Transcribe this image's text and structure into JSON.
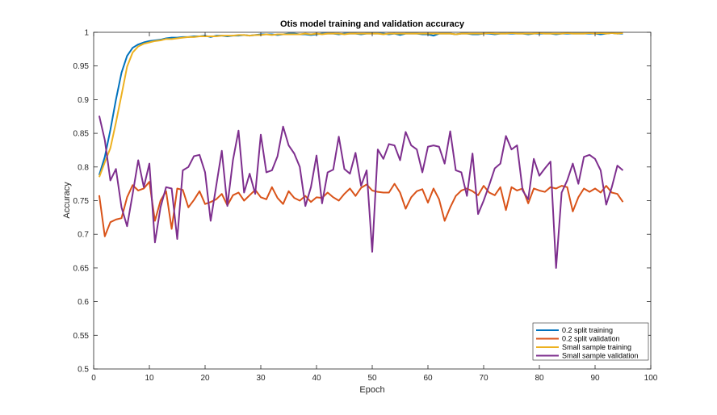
{
  "chart_data": {
    "type": "line",
    "title": "Otis model training and validation accuracy",
    "xlabel": "Epoch",
    "ylabel": "Accuracy",
    "xlim": [
      0,
      100
    ],
    "ylim": [
      0.5,
      1
    ],
    "xticks": [
      0,
      10,
      20,
      30,
      40,
      50,
      60,
      70,
      80,
      90,
      100
    ],
    "yticks": [
      0.5,
      0.55,
      0.6,
      0.65,
      0.7,
      0.75,
      0.8,
      0.85,
      0.9,
      0.95,
      1
    ],
    "ytick_labels": [
      "0.5",
      "0.55",
      "0.6",
      "0.65",
      "0.7",
      "0.75",
      "0.8",
      "0.85",
      "0.9",
      "0.95",
      "1"
    ],
    "grid": false,
    "legend_position": "bottom-right",
    "x": [
      1,
      2,
      3,
      4,
      5,
      6,
      7,
      8,
      9,
      10,
      11,
      12,
      13,
      14,
      15,
      16,
      17,
      18,
      19,
      20,
      21,
      22,
      23,
      24,
      25,
      26,
      27,
      28,
      29,
      30,
      31,
      32,
      33,
      34,
      35,
      36,
      37,
      38,
      39,
      40,
      41,
      42,
      43,
      44,
      45,
      46,
      47,
      48,
      49,
      50,
      51,
      52,
      53,
      54,
      55,
      56,
      57,
      58,
      59,
      60,
      61,
      62,
      63,
      64,
      65,
      66,
      67,
      68,
      69,
      70,
      71,
      72,
      73,
      74,
      75,
      76,
      77,
      78,
      79,
      80,
      81,
      82,
      83,
      84,
      85,
      86,
      87,
      88,
      89,
      90,
      91,
      92,
      93,
      94,
      95
    ],
    "series": [
      {
        "name": "0.2 split training",
        "color": "#0072BD",
        "values": [
          0.788,
          0.815,
          0.855,
          0.9,
          0.94,
          0.965,
          0.977,
          0.982,
          0.985,
          0.987,
          0.988,
          0.989,
          0.991,
          0.992,
          0.992,
          0.993,
          0.993,
          0.994,
          0.994,
          0.995,
          0.993,
          0.995,
          0.995,
          0.994,
          0.995,
          0.995,
          0.996,
          0.995,
          0.996,
          0.997,
          0.997,
          0.997,
          0.996,
          0.997,
          0.998,
          0.998,
          0.997,
          0.997,
          0.996,
          0.997,
          0.998,
          0.998,
          0.998,
          0.997,
          0.998,
          0.998,
          0.998,
          0.997,
          0.998,
          0.998,
          0.998,
          0.998,
          0.997,
          0.998,
          0.996,
          0.998,
          0.998,
          0.998,
          0.997,
          0.997,
          0.995,
          0.998,
          0.998,
          0.998,
          0.997,
          0.998,
          0.998,
          0.997,
          0.997,
          0.998,
          0.998,
          0.997,
          0.998,
          0.998,
          0.998,
          0.998,
          0.998,
          0.997,
          0.998,
          0.998,
          0.998,
          0.998,
          0.997,
          0.998,
          0.998,
          0.998,
          0.998,
          0.998,
          0.998,
          0.998,
          0.997,
          0.998,
          0.999,
          0.998,
          0.998
        ]
      },
      {
        "name": "0.2 split validation",
        "color": "#D95319",
        "values": [
          0.758,
          0.697,
          0.718,
          0.722,
          0.724,
          0.755,
          0.773,
          0.765,
          0.768,
          0.778,
          0.72,
          0.75,
          0.764,
          0.708,
          0.768,
          0.766,
          0.74,
          0.751,
          0.764,
          0.745,
          0.748,
          0.752,
          0.76,
          0.743,
          0.758,
          0.762,
          0.75,
          0.758,
          0.766,
          0.755,
          0.752,
          0.77,
          0.754,
          0.745,
          0.764,
          0.754,
          0.75,
          0.757,
          0.748,
          0.755,
          0.754,
          0.762,
          0.755,
          0.75,
          0.76,
          0.768,
          0.757,
          0.769,
          0.774,
          0.765,
          0.763,
          0.762,
          0.762,
          0.775,
          0.762,
          0.738,
          0.755,
          0.764,
          0.767,
          0.747,
          0.768,
          0.752,
          0.72,
          0.74,
          0.757,
          0.765,
          0.768,
          0.764,
          0.758,
          0.772,
          0.762,
          0.758,
          0.77,
          0.736,
          0.77,
          0.765,
          0.768,
          0.746,
          0.768,
          0.765,
          0.763,
          0.77,
          0.768,
          0.772,
          0.77,
          0.734,
          0.755,
          0.768,
          0.763,
          0.768,
          0.762,
          0.772,
          0.762,
          0.76,
          0.748
        ]
      },
      {
        "name": "Small sample training",
        "color": "#EDB120",
        "values": [
          0.785,
          0.807,
          0.828,
          0.866,
          0.907,
          0.949,
          0.97,
          0.979,
          0.983,
          0.985,
          0.987,
          0.988,
          0.99,
          0.99,
          0.991,
          0.992,
          0.993,
          0.993,
          0.994,
          0.994,
          0.994,
          0.994,
          0.995,
          0.995,
          0.995,
          0.996,
          0.996,
          0.995,
          0.996,
          0.996,
          0.997,
          0.996,
          0.997,
          0.997,
          0.997,
          0.997,
          0.997,
          0.998,
          0.997,
          0.998,
          0.997,
          0.998,
          0.998,
          0.998,
          0.997,
          0.998,
          0.998,
          0.998,
          0.998,
          0.998,
          0.998,
          0.997,
          0.998,
          0.998,
          0.998,
          0.998,
          0.998,
          0.998,
          0.998,
          0.998,
          0.998,
          0.998,
          0.998,
          0.998,
          0.997,
          0.998,
          0.998,
          0.998,
          0.998,
          0.998,
          0.999,
          0.998,
          0.998,
          0.998,
          0.999,
          0.998,
          0.998,
          0.998,
          0.998,
          0.999,
          0.998,
          0.998,
          0.998,
          0.998,
          0.999,
          0.998,
          0.998,
          0.998,
          0.999,
          0.998,
          0.999,
          0.998,
          0.999,
          0.998,
          0.999
        ]
      },
      {
        "name": "Small sample validation",
        "color": "#7E2F8E",
        "values": [
          0.876,
          0.84,
          0.78,
          0.797,
          0.74,
          0.712,
          0.76,
          0.81,
          0.77,
          0.805,
          0.688,
          0.74,
          0.77,
          0.768,
          0.693,
          0.795,
          0.8,
          0.816,
          0.818,
          0.792,
          0.72,
          0.772,
          0.824,
          0.742,
          0.81,
          0.854,
          0.762,
          0.79,
          0.76,
          0.848,
          0.792,
          0.795,
          0.816,
          0.86,
          0.832,
          0.82,
          0.8,
          0.742,
          0.77,
          0.817,
          0.746,
          0.792,
          0.796,
          0.845,
          0.797,
          0.79,
          0.821,
          0.772,
          0.795,
          0.674,
          0.826,
          0.812,
          0.834,
          0.832,
          0.81,
          0.852,
          0.832,
          0.826,
          0.792,
          0.83,
          0.832,
          0.83,
          0.805,
          0.853,
          0.795,
          0.792,
          0.757,
          0.82,
          0.73,
          0.75,
          0.773,
          0.798,
          0.805,
          0.846,
          0.826,
          0.832,
          0.765,
          0.752,
          0.812,
          0.787,
          0.798,
          0.808,
          0.65,
          0.762,
          0.78,
          0.805,
          0.775,
          0.815,
          0.818,
          0.812,
          0.795,
          0.744,
          0.77,
          0.802,
          0.795
        ]
      }
    ]
  }
}
